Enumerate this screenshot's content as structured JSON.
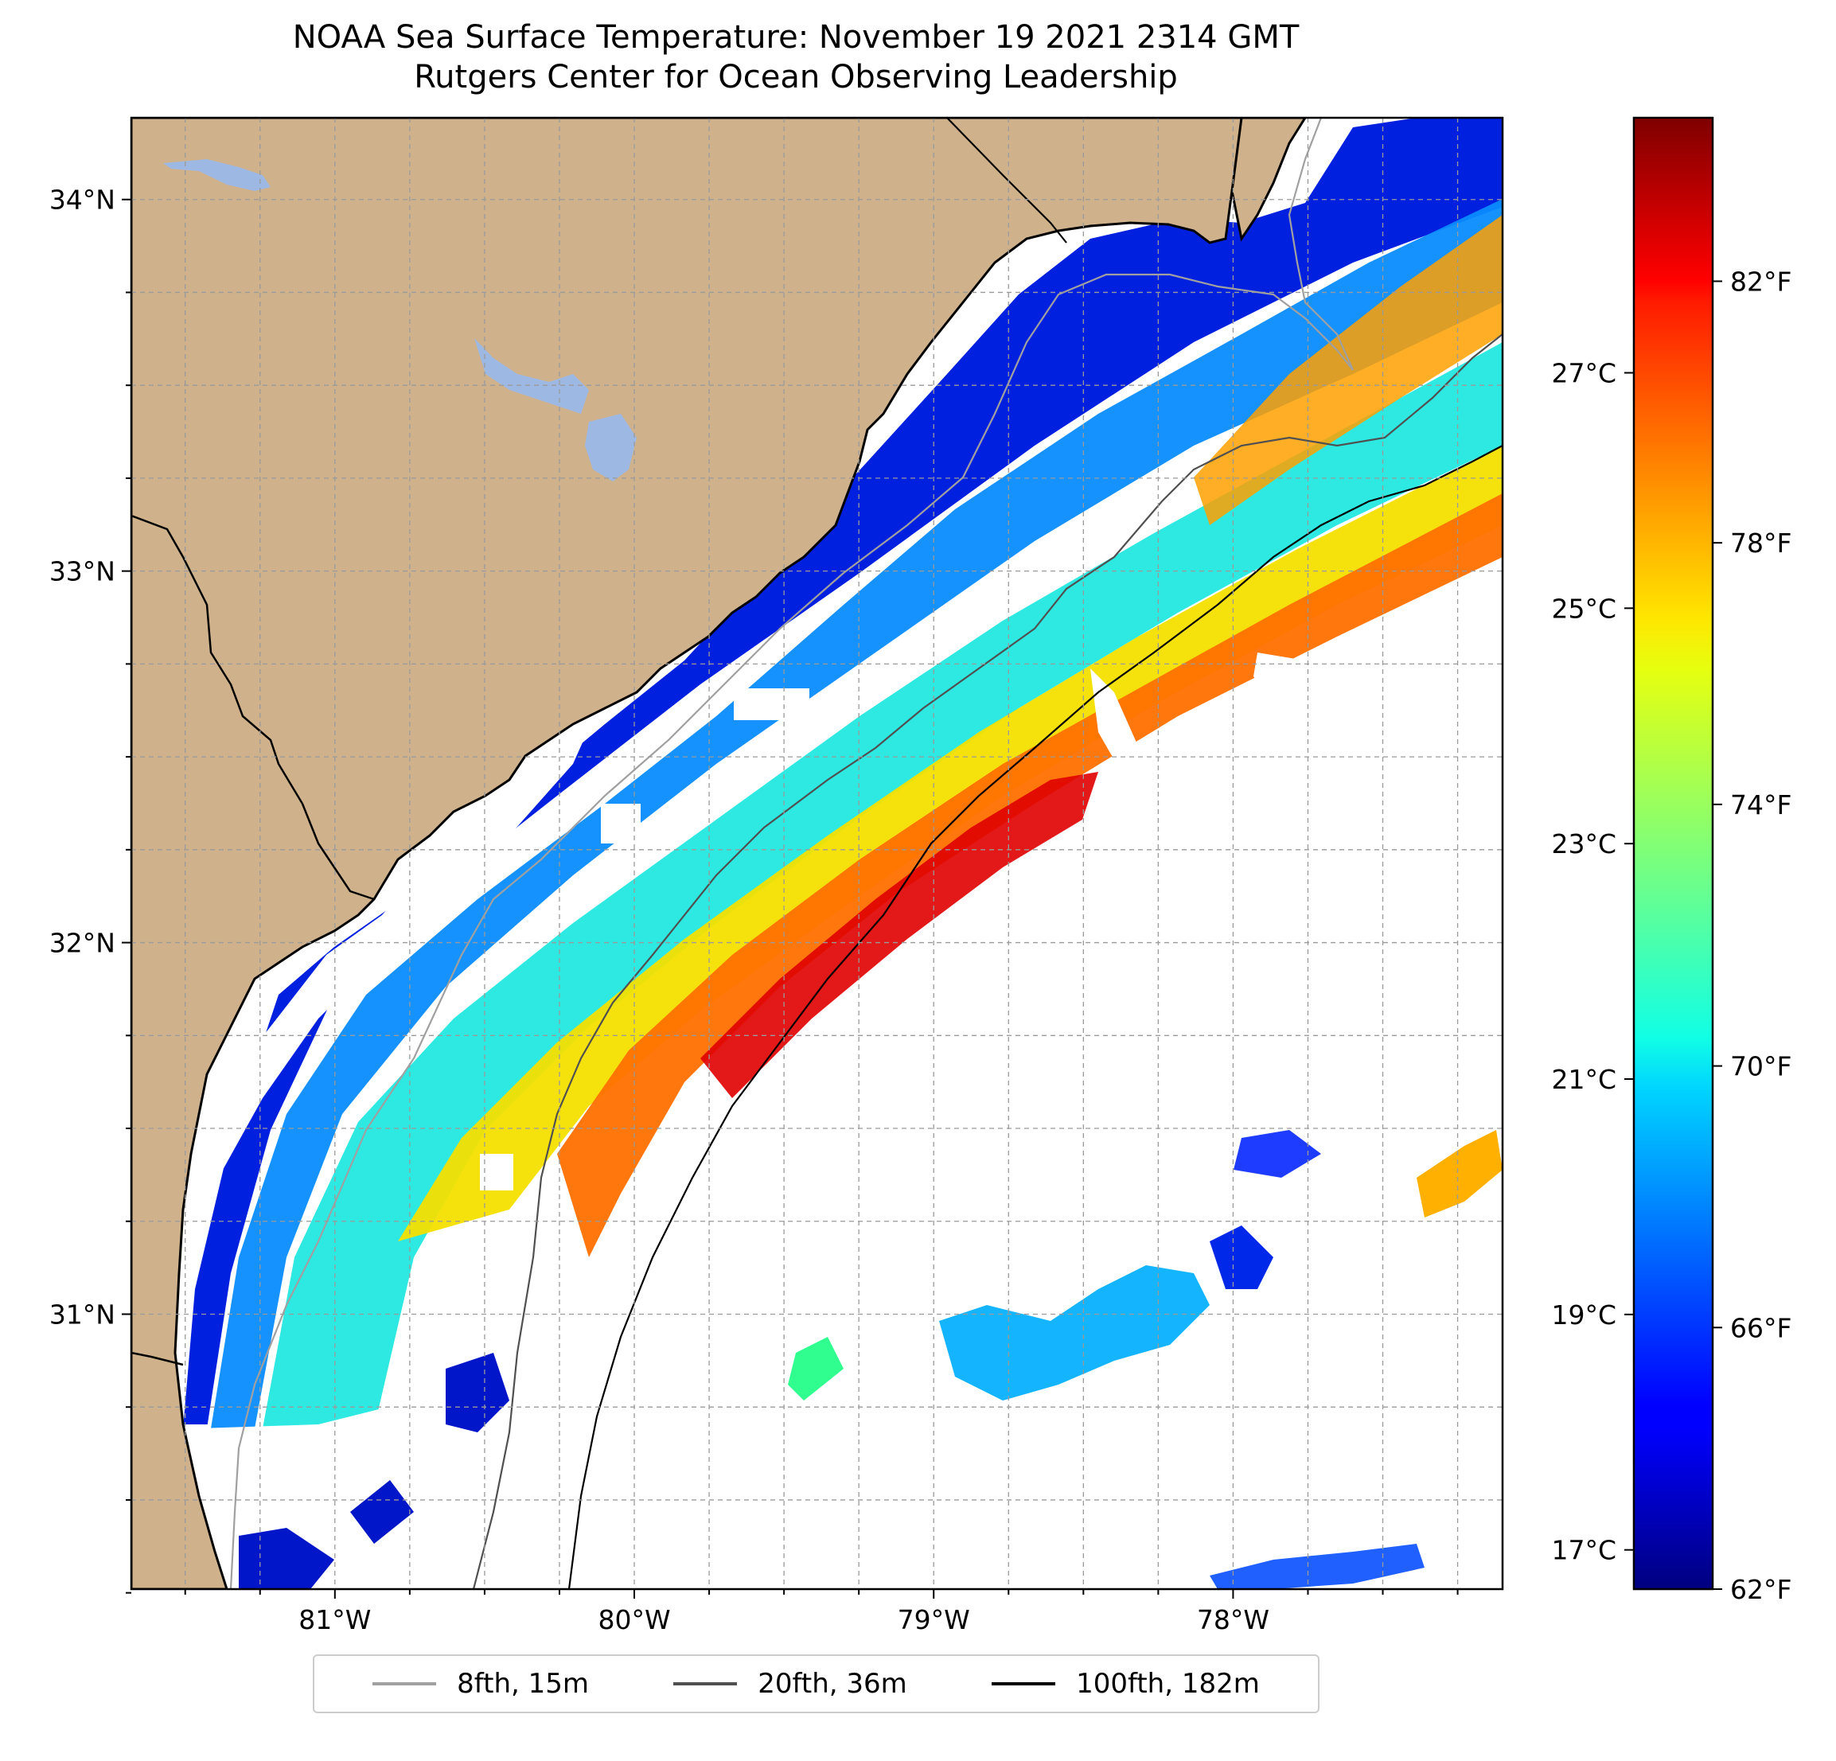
{
  "title": {
    "line1": "NOAA Sea Surface Temperature: November 19 2021 2314 GMT",
    "line2": "Rutgers Center for Ocean Observing Leadership"
  },
  "axes": {
    "lat_ticks": [
      {
        "value": 34,
        "label": "34°N"
      },
      {
        "value": 33,
        "label": "33°N"
      },
      {
        "value": 32,
        "label": "32°N"
      },
      {
        "value": 31,
        "label": "31°N"
      }
    ],
    "lon_ticks": [
      {
        "value": -81,
        "label": "81°W"
      },
      {
        "value": -80,
        "label": "80°W"
      },
      {
        "value": -79,
        "label": "79°W"
      },
      {
        "value": -78,
        "label": "78°W"
      }
    ],
    "lon_range": [
      -81.68,
      -77.1
    ],
    "lat_range": [
      30.26,
      34.22
    ]
  },
  "colorbar": {
    "celsius_ticks": [
      {
        "value": 27,
        "label": "27°C"
      },
      {
        "value": 25,
        "label": "25°C"
      },
      {
        "value": 23,
        "label": "23°C"
      },
      {
        "value": 21,
        "label": "21°C"
      },
      {
        "value": 19,
        "label": "19°C"
      },
      {
        "value": 17,
        "label": "17°C"
      }
    ],
    "fahrenheit_ticks": [
      {
        "value": 82,
        "label": "82°F"
      },
      {
        "value": 78,
        "label": "78°F"
      },
      {
        "value": 74,
        "label": "74°F"
      },
      {
        "value": 70,
        "label": "70°F"
      },
      {
        "value": 66,
        "label": "66°F"
      },
      {
        "value": 62,
        "label": "62°F"
      }
    ],
    "range_f": [
      62,
      84.5
    ],
    "colormap": "jet"
  },
  "legend": {
    "items": [
      {
        "label": "8fth, 15m",
        "color": "#a0a0a0"
      },
      {
        "label": "20fth, 36m",
        "color": "#505050"
      },
      {
        "label": "100fth, 182m",
        "color": "#000000"
      }
    ]
  },
  "colors": {
    "land": "#cfb28c",
    "lakes": "#9db8e2",
    "no_data": "#ffffff"
  }
}
